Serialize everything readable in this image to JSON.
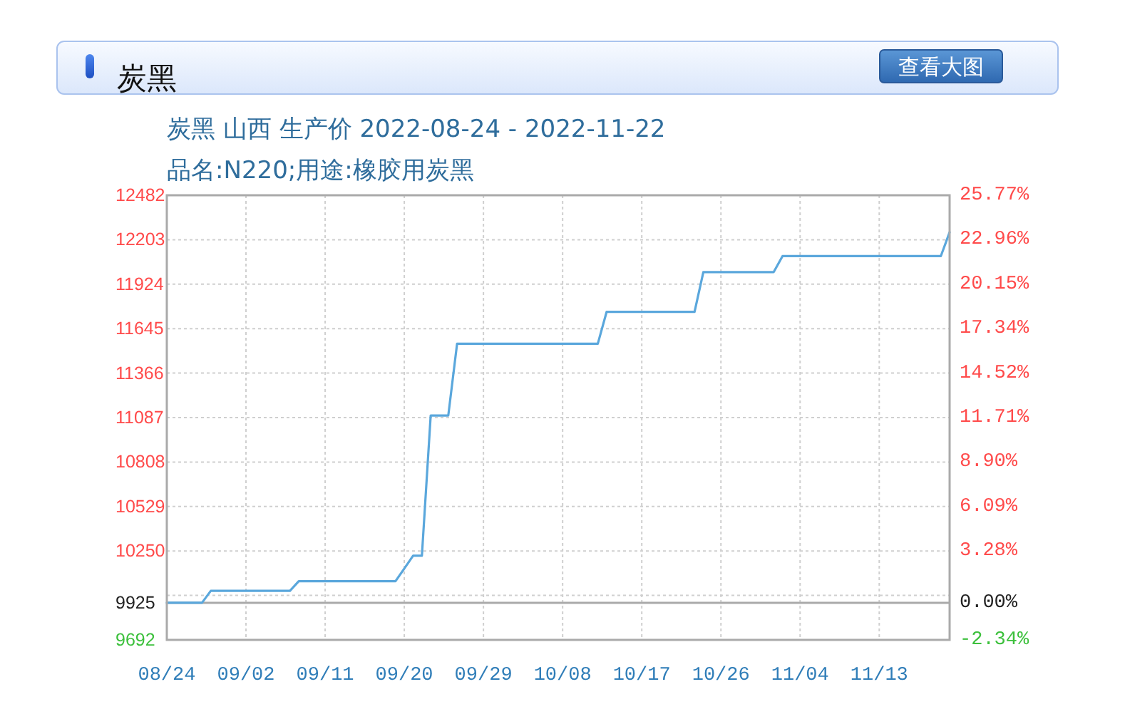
{
  "chart_data": {
    "type": "line",
    "title": "炭黑",
    "subtitle": "炭黑 山西 生产价 2022-08-24 - 2022-11-22",
    "annotations": [
      "品名:N220;用途:橡胶用炭黑",
      "查看大图"
    ],
    "x": [
      "2022-08-24",
      "2022-08-28",
      "2022-08-29",
      "2022-09-07",
      "2022-09-08",
      "2022-09-19",
      "2022-09-20",
      "2022-09-21",
      "2022-09-22",
      "2022-09-23",
      "2022-09-25",
      "2022-09-26",
      "2022-10-12",
      "2022-10-13",
      "2022-10-23",
      "2022-10-24",
      "2022-11-01",
      "2022-11-02",
      "2022-11-20",
      "2022-11-21"
    ],
    "series": [
      {
        "color": "#5aa7dc",
        "values": [
          9925,
          9925,
          10000,
          10000,
          10060,
          10060,
          10140,
          10220,
          10220,
          11100,
          11100,
          11550,
          11550,
          11750,
          11750,
          12000,
          12000,
          12100,
          12100,
          12250
        ]
      }
    ],
    "xlim": [
      "2022-08-24",
      "2022-11-21"
    ],
    "xticks": [
      {
        "value": "2022-08-24",
        "label": "08/24"
      },
      {
        "value": "2022-09-02",
        "label": "09/02"
      },
      {
        "value": "2022-09-11",
        "label": "09/11"
      },
      {
        "value": "2022-09-20",
        "label": "09/20"
      },
      {
        "value": "2022-09-29",
        "label": "09/29"
      },
      {
        "value": "2022-10-08",
        "label": "10/08"
      },
      {
        "value": "2022-10-17",
        "label": "10/17"
      },
      {
        "value": "2022-10-26",
        "label": "10/26"
      },
      {
        "value": "2022-11-04",
        "label": "11/04"
      },
      {
        "value": "2022-11-13",
        "label": "11/13"
      }
    ],
    "ylim": [
      9692,
      12482
    ],
    "yticks": [
      12482,
      12203,
      11924,
      11645,
      11366,
      11087,
      10808,
      10529,
      10250,
      {
        "value": 9971,
        "label": null
      },
      9925,
      9692
    ],
    "y2lim": [
      -2.34,
      25.77
    ],
    "y2ticks": [
      {
        "value": 25.77,
        "label": "25.77%"
      },
      {
        "value": 22.96,
        "label": "22.96%"
      },
      {
        "value": 20.15,
        "label": "20.15%"
      },
      {
        "value": 17.34,
        "label": "17.34%"
      },
      {
        "value": 14.52,
        "label": "14.52%"
      },
      {
        "value": 11.71,
        "label": "11.71%"
      },
      {
        "value": 8.9,
        "label": "8.90%"
      },
      {
        "value": 6.09,
        "label": "6.09%"
      },
      {
        "value": 3.28,
        "label": "3.28%"
      },
      {
        "value": 0,
        "label": "0.00%"
      },
      {
        "value": -2.34,
        "label": "-2.34%"
      }
    ],
    "grid": true,
    "ref_lines": [
      {
        "axis": "y",
        "value": 9925,
        "color": "#aaaaaa"
      }
    ]
  }
}
